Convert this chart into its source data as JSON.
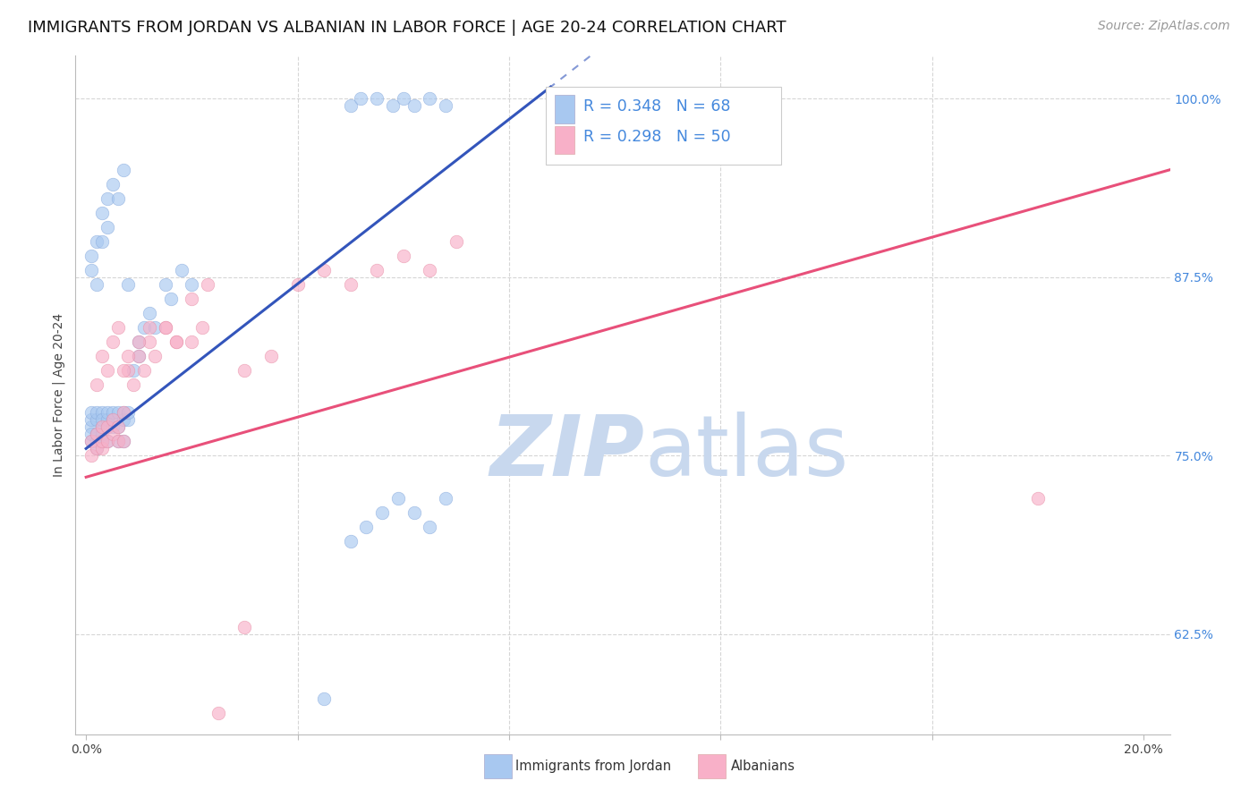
{
  "title": "IMMIGRANTS FROM JORDAN VS ALBANIAN IN LABOR FORCE | AGE 20-24 CORRELATION CHART",
  "source": "Source: ZipAtlas.com",
  "ylabel": "In Labor Force | Age 20-24",
  "jordan_R": 0.348,
  "jordan_N": 68,
  "albanian_R": 0.298,
  "albanian_N": 50,
  "jordan_color": "#A8C8F0",
  "albanian_color": "#F8B0C8",
  "jordan_line_color": "#3355BB",
  "albanian_line_color": "#E8507A",
  "right_tick_color": "#4488DD",
  "background_color": "#FFFFFF",
  "grid_color": "#CCCCCC",
  "watermark_zip": "ZIP",
  "watermark_atlas": "atlas",
  "watermark_color_zip": "#C8D8EE",
  "watermark_color_atlas": "#C8D8EE",
  "title_fontsize": 13,
  "axis_label_fontsize": 10,
  "tick_fontsize": 10,
  "source_fontsize": 10,
  "jordan_x": [
    0.001,
    0.001,
    0.001,
    0.001,
    0.001,
    0.002,
    0.002,
    0.002,
    0.002,
    0.002,
    0.003,
    0.003,
    0.003,
    0.003,
    0.003,
    0.004,
    0.004,
    0.004,
    0.004,
    0.005,
    0.005,
    0.005,
    0.006,
    0.006,
    0.006,
    0.007,
    0.007,
    0.007,
    0.008,
    0.008,
    0.009,
    0.01,
    0.01,
    0.011,
    0.012,
    0.013,
    0.015,
    0.016,
    0.018,
    0.02,
    0.001,
    0.001,
    0.002,
    0.002,
    0.003,
    0.003,
    0.004,
    0.004,
    0.005,
    0.006,
    0.007,
    0.008,
    0.05,
    0.052,
    0.055,
    0.058,
    0.06,
    0.062,
    0.065,
    0.068,
    0.05,
    0.053,
    0.056,
    0.059,
    0.062,
    0.065,
    0.068,
    0.045
  ],
  "jordan_y": [
    0.77,
    0.775,
    0.78,
    0.76,
    0.765,
    0.76,
    0.775,
    0.78,
    0.765,
    0.755,
    0.77,
    0.78,
    0.775,
    0.76,
    0.765,
    0.77,
    0.775,
    0.78,
    0.76,
    0.77,
    0.775,
    0.78,
    0.76,
    0.77,
    0.78,
    0.76,
    0.775,
    0.78,
    0.775,
    0.78,
    0.81,
    0.82,
    0.83,
    0.84,
    0.85,
    0.84,
    0.87,
    0.86,
    0.88,
    0.87,
    0.88,
    0.89,
    0.87,
    0.9,
    0.9,
    0.92,
    0.91,
    0.93,
    0.94,
    0.93,
    0.95,
    0.87,
    0.995,
    1.0,
    1.0,
    0.995,
    1.0,
    0.995,
    1.0,
    0.995,
    0.69,
    0.7,
    0.71,
    0.72,
    0.71,
    0.7,
    0.72,
    0.58
  ],
  "albanian_x": [
    0.001,
    0.001,
    0.002,
    0.002,
    0.003,
    0.003,
    0.003,
    0.004,
    0.004,
    0.005,
    0.005,
    0.006,
    0.006,
    0.007,
    0.007,
    0.008,
    0.009,
    0.01,
    0.011,
    0.012,
    0.013,
    0.015,
    0.017,
    0.02,
    0.022,
    0.002,
    0.003,
    0.004,
    0.005,
    0.006,
    0.007,
    0.008,
    0.01,
    0.012,
    0.015,
    0.017,
    0.02,
    0.023,
    0.03,
    0.035,
    0.04,
    0.045,
    0.05,
    0.055,
    0.06,
    0.065,
    0.07,
    0.18,
    0.03,
    0.025
  ],
  "albanian_y": [
    0.76,
    0.75,
    0.755,
    0.765,
    0.755,
    0.76,
    0.77,
    0.76,
    0.77,
    0.765,
    0.775,
    0.76,
    0.77,
    0.78,
    0.76,
    0.81,
    0.8,
    0.82,
    0.81,
    0.83,
    0.82,
    0.84,
    0.83,
    0.83,
    0.84,
    0.8,
    0.82,
    0.81,
    0.83,
    0.84,
    0.81,
    0.82,
    0.83,
    0.84,
    0.84,
    0.83,
    0.86,
    0.87,
    0.81,
    0.82,
    0.87,
    0.88,
    0.87,
    0.88,
    0.89,
    0.88,
    0.9,
    0.72,
    0.63,
    0.57
  ],
  "ytick_values": [
    0.625,
    0.75,
    0.875,
    1.0
  ],
  "ytick_labels": [
    "62.5%",
    "75.0%",
    "87.5%",
    "100.0%"
  ],
  "xtick_values": [
    0.0,
    0.04,
    0.08,
    0.12,
    0.16,
    0.2
  ],
  "xtick_labels": [
    "0.0%",
    "",
    "",
    "",
    "",
    "20.0%"
  ]
}
